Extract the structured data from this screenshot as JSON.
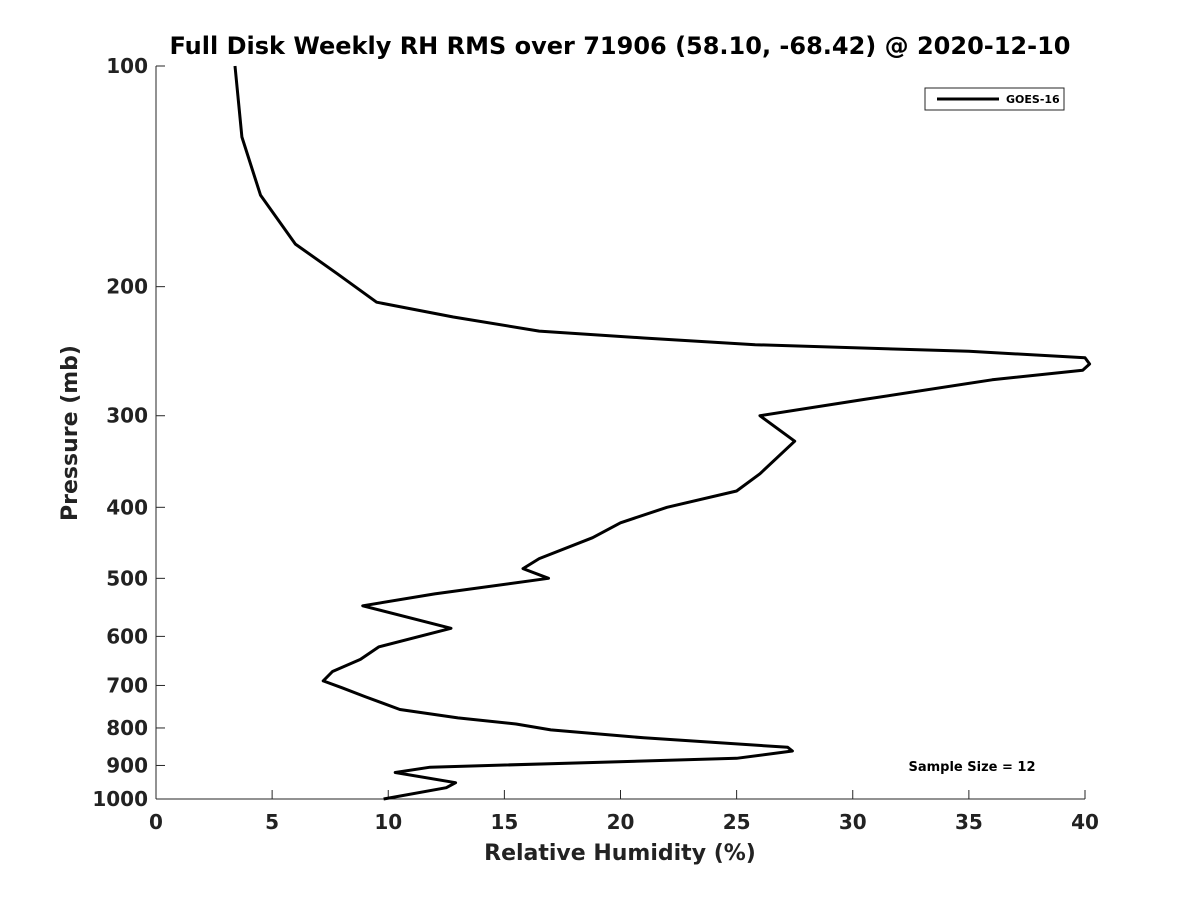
{
  "chart_data": {
    "type": "line",
    "title": "Full Disk Weekly RH RMS over 71906 (58.10, -68.42) @ 2020-12-10",
    "xlabel": "Relative Humidity (%)",
    "ylabel": "Pressure (mb)",
    "xlim": [
      0,
      40
    ],
    "ylim": [
      100,
      1000
    ],
    "y_scale": "log",
    "y_reversed": true,
    "grid": false,
    "legend_position": "top-right",
    "x_ticks": [
      0,
      5,
      10,
      15,
      20,
      25,
      30,
      35,
      40
    ],
    "y_ticks": [
      100,
      200,
      300,
      400,
      500,
      600,
      700,
      800,
      900,
      1000
    ],
    "annotation": "Sample Size = 12",
    "series": [
      {
        "name": "GOES-16",
        "color": "#000000",
        "points": [
          [
            3.4,
            100
          ],
          [
            3.7,
            125
          ],
          [
            4.5,
            150
          ],
          [
            6.0,
            175
          ],
          [
            7.8,
            192
          ],
          [
            9.5,
            210
          ],
          [
            12.8,
            220
          ],
          [
            16.5,
            230
          ],
          [
            21.0,
            235
          ],
          [
            25.8,
            240
          ],
          [
            35.0,
            245
          ],
          [
            40.0,
            250
          ],
          [
            40.2,
            255
          ],
          [
            39.9,
            260
          ],
          [
            36.0,
            268
          ],
          [
            30.5,
            285
          ],
          [
            26.0,
            300
          ],
          [
            27.5,
            325
          ],
          [
            26.0,
            360
          ],
          [
            25.0,
            380
          ],
          [
            22.0,
            400
          ],
          [
            20.0,
            420
          ],
          [
            18.8,
            440
          ],
          [
            16.5,
            470
          ],
          [
            15.8,
            485
          ],
          [
            16.9,
            500
          ],
          [
            12.0,
            525
          ],
          [
            8.9,
            545
          ],
          [
            12.7,
            585
          ],
          [
            9.6,
            620
          ],
          [
            8.8,
            645
          ],
          [
            7.6,
            670
          ],
          [
            7.2,
            690
          ],
          [
            8.0,
            705
          ],
          [
            9.0,
            725
          ],
          [
            10.5,
            755
          ],
          [
            13.0,
            775
          ],
          [
            15.5,
            790
          ],
          [
            17.0,
            805
          ],
          [
            21.0,
            825
          ],
          [
            27.2,
            850
          ],
          [
            27.4,
            860
          ],
          [
            25.0,
            880
          ],
          [
            11.8,
            905
          ],
          [
            10.3,
            920
          ],
          [
            12.9,
            950
          ],
          [
            12.5,
            965
          ],
          [
            9.8,
            1000
          ]
        ]
      }
    ]
  }
}
